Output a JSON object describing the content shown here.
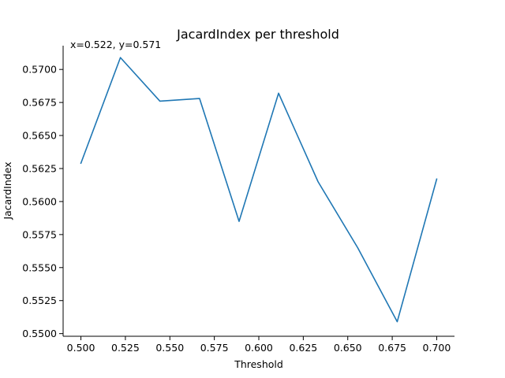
{
  "chart_data": {
    "type": "line",
    "title": "JacardIndex per threshold",
    "xlabel": "Threshold",
    "ylabel": "JacardIndex",
    "annotation": "x=0.522, y=0.571",
    "xlim": [
      0.49,
      0.71
    ],
    "ylim": [
      0.5498,
      0.5718
    ],
    "xticks": [
      0.5,
      0.525,
      0.55,
      0.575,
      0.6,
      0.625,
      0.65,
      0.675,
      0.7
    ],
    "xtick_labels": [
      "0.500",
      "0.525",
      "0.550",
      "0.575",
      "0.600",
      "0.625",
      "0.650",
      "0.675",
      "0.700"
    ],
    "yticks": [
      0.55,
      0.5525,
      0.555,
      0.5575,
      0.56,
      0.5625,
      0.565,
      0.5675,
      0.57
    ],
    "ytick_labels": [
      "0.5500",
      "0.5525",
      "0.5550",
      "0.5575",
      "0.5600",
      "0.5625",
      "0.5650",
      "0.5675",
      "0.5700"
    ],
    "grid": false,
    "series": [
      {
        "color": "#1f77b4",
        "x": [
          0.5,
          0.5222,
          0.5444,
          0.5667,
          0.5889,
          0.6111,
          0.6333,
          0.6556,
          0.6778,
          0.7
        ],
        "y": [
          0.5629,
          0.5709,
          0.5676,
          0.5678,
          0.5585,
          0.5682,
          0.5615,
          0.5565,
          0.5509,
          0.5617
        ]
      }
    ]
  }
}
